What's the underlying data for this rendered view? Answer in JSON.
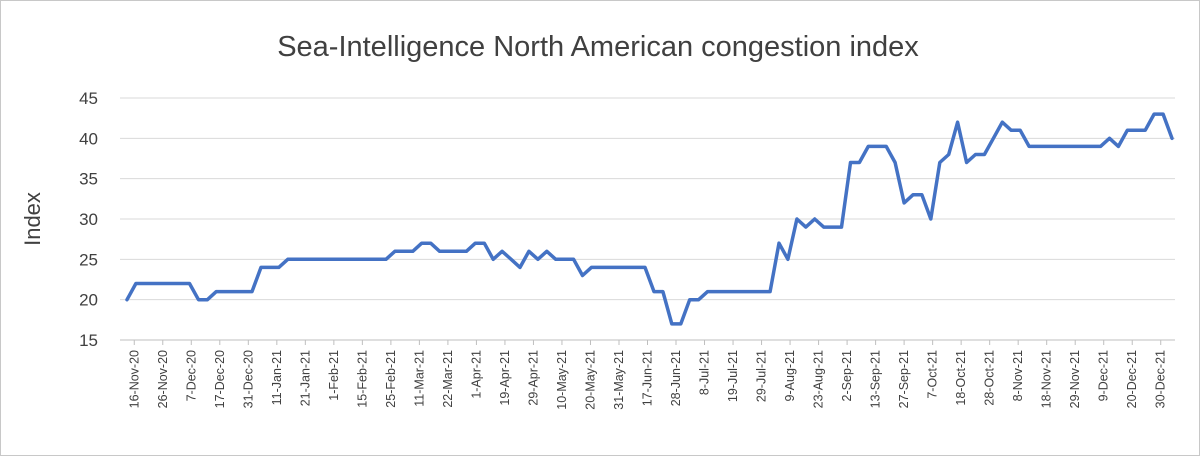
{
  "chart_data": {
    "type": "line",
    "title": "Sea-Intelligence North American congestion index",
    "xlabel": "",
    "ylabel": "Index",
    "ylim": [
      15,
      45
    ],
    "yticks": [
      15,
      20,
      25,
      30,
      35,
      40,
      45
    ],
    "grid": true,
    "legend": "none",
    "series_color": "#4472C4",
    "x_tick_labels": [
      "16-Nov-20",
      "26-Nov-20",
      "7-Dec-20",
      "17-Dec-20",
      "31-Dec-20",
      "11-Jan-21",
      "21-Jan-21",
      "1-Feb-21",
      "15-Feb-21",
      "25-Feb-21",
      "11-Mar-21",
      "22-Mar-21",
      "1-Apr-21",
      "19-Apr-21",
      "29-Apr-21",
      "10-May-21",
      "20-May-21",
      "31-May-21",
      "17-Jun-21",
      "28-Jun-21",
      "8-Jul-21",
      "19-Jul-21",
      "29-Jul-21",
      "9-Aug-21",
      "23-Aug-21",
      "2-Sep-21",
      "13-Sep-21",
      "27-Sep-21",
      "7-Oct-21",
      "18-Oct-21",
      "28-Oct-21",
      "8-Nov-21",
      "18-Nov-21",
      "29-Nov-21",
      "9-Dec-21",
      "20-Dec-21",
      "30-Dec-21"
    ],
    "series": [
      {
        "values": [
          20,
          22,
          22,
          22,
          22,
          22,
          22,
          22,
          20,
          20,
          21,
          21,
          21,
          21,
          21,
          24,
          24,
          24,
          25,
          25,
          25,
          25,
          25,
          25,
          25,
          25,
          25,
          25,
          25,
          25,
          26,
          26,
          26,
          27,
          27,
          26,
          26,
          26,
          26,
          27,
          27,
          25,
          26,
          25,
          24,
          26,
          25,
          26,
          25,
          25,
          25,
          23,
          24,
          24,
          24,
          24,
          24,
          24,
          24,
          21,
          21,
          17,
          17,
          20,
          20,
          21,
          21,
          21,
          21,
          21,
          21,
          21,
          21,
          27,
          25,
          30,
          29,
          30,
          29,
          29,
          29,
          37,
          37,
          39,
          39,
          39,
          37,
          32,
          33,
          33,
          30,
          37,
          38,
          42,
          37,
          38,
          38,
          40,
          42,
          41,
          41,
          39,
          39,
          39,
          39,
          39,
          39,
          39,
          39,
          39,
          40,
          39,
          41,
          41,
          41,
          43,
          43,
          40
        ]
      }
    ]
  }
}
